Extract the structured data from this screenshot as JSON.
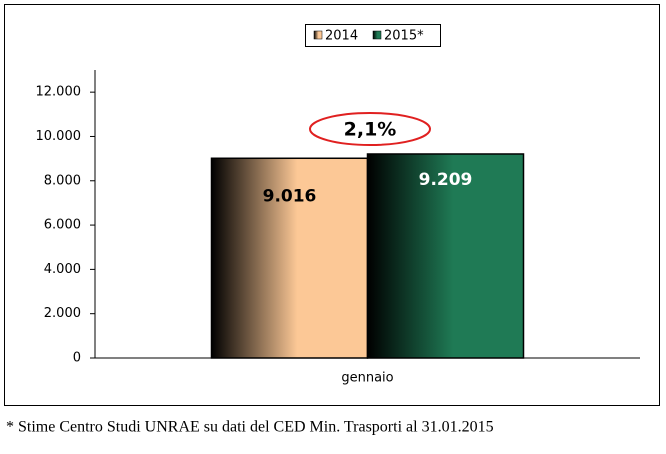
{
  "chart_data": {
    "type": "bar",
    "categories": [
      "gennaio"
    ],
    "series": [
      {
        "name": "2014",
        "color": "#fcc896",
        "values": [
          9016
        ],
        "value_labels": [
          "9.016"
        ]
      },
      {
        "name": "2015*",
        "color": "#1f7a55",
        "values": [
          9209
        ],
        "value_labels": [
          "9.209"
        ]
      }
    ],
    "ylim": [
      0,
      13000
    ],
    "yticks": [
      0,
      {
        "value": 2000,
        "label": "2.000"
      },
      {
        "value": 4000,
        "label": "4.000"
      },
      {
        "value": 6000,
        "label": "6.000"
      },
      {
        "value": 8000,
        "label": "8.000"
      },
      {
        "value": 10000,
        "label": "10.000"
      },
      {
        "value": 12000,
        "label": "12.000"
      }
    ],
    "annotation": "2,1%",
    "footnote": "* Stime Centro Studi UNRAE su dati del CED Min. Trasporti al 31.01.2015"
  }
}
